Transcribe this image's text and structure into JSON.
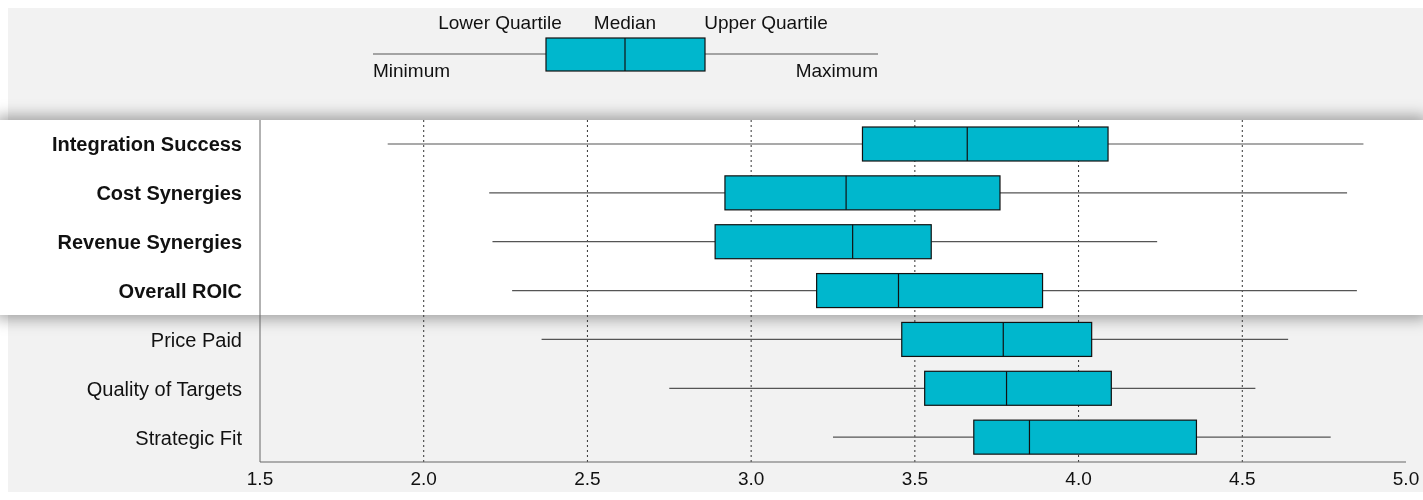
{
  "chart_data": {
    "type": "box",
    "orientation": "horizontal",
    "categories": [
      "Integration Success",
      "Cost Synergies",
      "Revenue Synergies",
      "Overall ROIC",
      "Price Paid",
      "Quality of Targets",
      "Strategic Fit"
    ],
    "series": [
      {
        "color": "#00b7cd",
        "boxes": [
          {
            "low": 1.89,
            "q1": 3.34,
            "median": 3.66,
            "q3": 4.09,
            "high": 4.87
          },
          {
            "low": 2.2,
            "q1": 2.92,
            "median": 3.29,
            "q3": 3.76,
            "high": 4.82
          },
          {
            "low": 2.21,
            "q1": 2.89,
            "median": 3.31,
            "q3": 3.55,
            "high": 4.24
          },
          {
            "low": 2.27,
            "q1": 3.2,
            "median": 3.45,
            "q3": 3.89,
            "high": 4.85
          },
          {
            "low": 2.36,
            "q1": 3.46,
            "median": 3.77,
            "q3": 4.04,
            "high": 4.64
          },
          {
            "low": 2.75,
            "q1": 3.53,
            "median": 3.78,
            "q3": 4.1,
            "high": 4.54
          },
          {
            "low": 3.25,
            "q1": 3.68,
            "median": 3.85,
            "q3": 4.36,
            "high": 4.77
          }
        ]
      }
    ],
    "xlim": [
      1.5,
      5
    ],
    "xticks": [
      1.5,
      {
        "value": 2,
        "label": "2.0"
      },
      2.5,
      {
        "value": 3,
        "label": "3.0"
      },
      3.5,
      {
        "value": 4,
        "label": "4.0"
      },
      4.5,
      {
        "value": 5,
        "label": "5.0"
      }
    ],
    "grid": "x",
    "bands": [
      {
        "axis": "y",
        "from": "Integration Success",
        "to": "Overall ROIC",
        "color": "#ffffff"
      }
    ],
    "annotations": [
      "Lower Quartile",
      "Median",
      "Upper Quartile",
      "Minimum",
      "Maximum"
    ]
  }
}
